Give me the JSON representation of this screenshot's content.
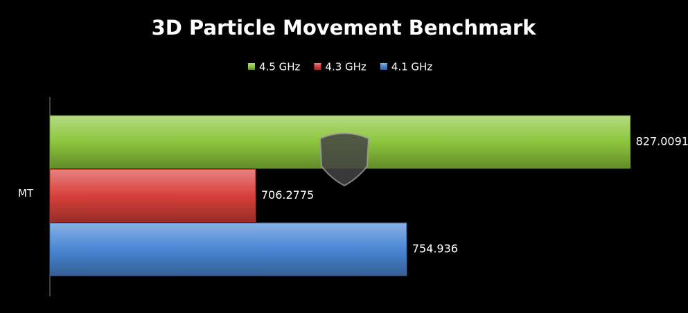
{
  "chart_data": {
    "type": "hbar",
    "title": "3D Particle Movement Benchmark",
    "categories": [
      "MT"
    ],
    "series": [
      {
        "name": "4.5 GHz",
        "color": "#8cc63e",
        "values": [
          827.0091
        ]
      },
      {
        "name": "4.3 GHz",
        "color": "#d8403b",
        "values": [
          706.2775
        ]
      },
      {
        "name": "4.1 GHz",
        "color": "#4a87d6",
        "values": [
          754.936
        ]
      }
    ],
    "xlim": [
      640,
      830
    ],
    "legend": "top"
  }
}
